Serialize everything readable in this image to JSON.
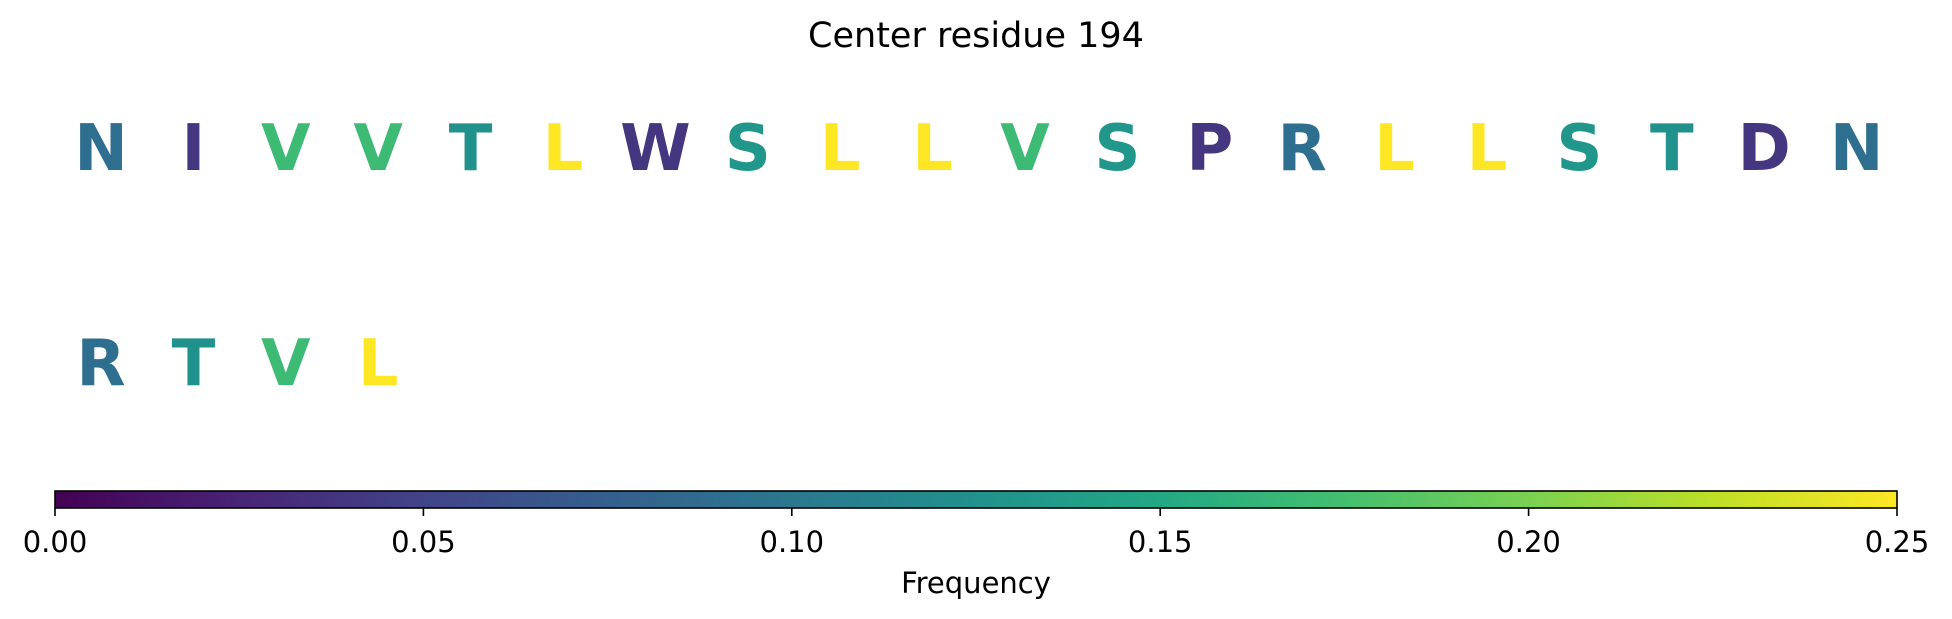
{
  "chart_data": {
    "type": "sequence-logo",
    "title": "Center residue 194",
    "residues": [
      {
        "letter": "N",
        "frequency": 0.09
      },
      {
        "letter": "I",
        "frequency": 0.04
      },
      {
        "letter": "V",
        "frequency": 0.17
      },
      {
        "letter": "V",
        "frequency": 0.17
      },
      {
        "letter": "T",
        "frequency": 0.125
      },
      {
        "letter": "L",
        "frequency": 0.25
      },
      {
        "letter": "W",
        "frequency": 0.04
      },
      {
        "letter": "S",
        "frequency": 0.13
      },
      {
        "letter": "L",
        "frequency": 0.25
      },
      {
        "letter": "L",
        "frequency": 0.25
      },
      {
        "letter": "V",
        "frequency": 0.17
      },
      {
        "letter": "S",
        "frequency": 0.13
      },
      {
        "letter": "P",
        "frequency": 0.04
      },
      {
        "letter": "R",
        "frequency": 0.09
      },
      {
        "letter": "L",
        "frequency": 0.25
      },
      {
        "letter": "L",
        "frequency": 0.25
      },
      {
        "letter": "S",
        "frequency": 0.13
      },
      {
        "letter": "T",
        "frequency": 0.125
      },
      {
        "letter": "D",
        "frequency": 0.04
      },
      {
        "letter": "N",
        "frequency": 0.09
      },
      {
        "letter": "R",
        "frequency": 0.09
      },
      {
        "letter": "T",
        "frequency": 0.125
      },
      {
        "letter": "V",
        "frequency": 0.17
      },
      {
        "letter": "L",
        "frequency": 0.25
      }
    ],
    "letters_per_row": 20,
    "colormap": "viridis",
    "colorbar": {
      "label": "Frequency",
      "range": [
        0.0,
        0.25
      ],
      "ticks": [
        0.0,
        0.05,
        0.1,
        0.15,
        0.2,
        0.25
      ],
      "tick_labels": [
        "0.00",
        "0.05",
        "0.10",
        "0.15",
        "0.20",
        "0.25"
      ],
      "orientation": "horizontal",
      "placement": "bottom"
    }
  }
}
